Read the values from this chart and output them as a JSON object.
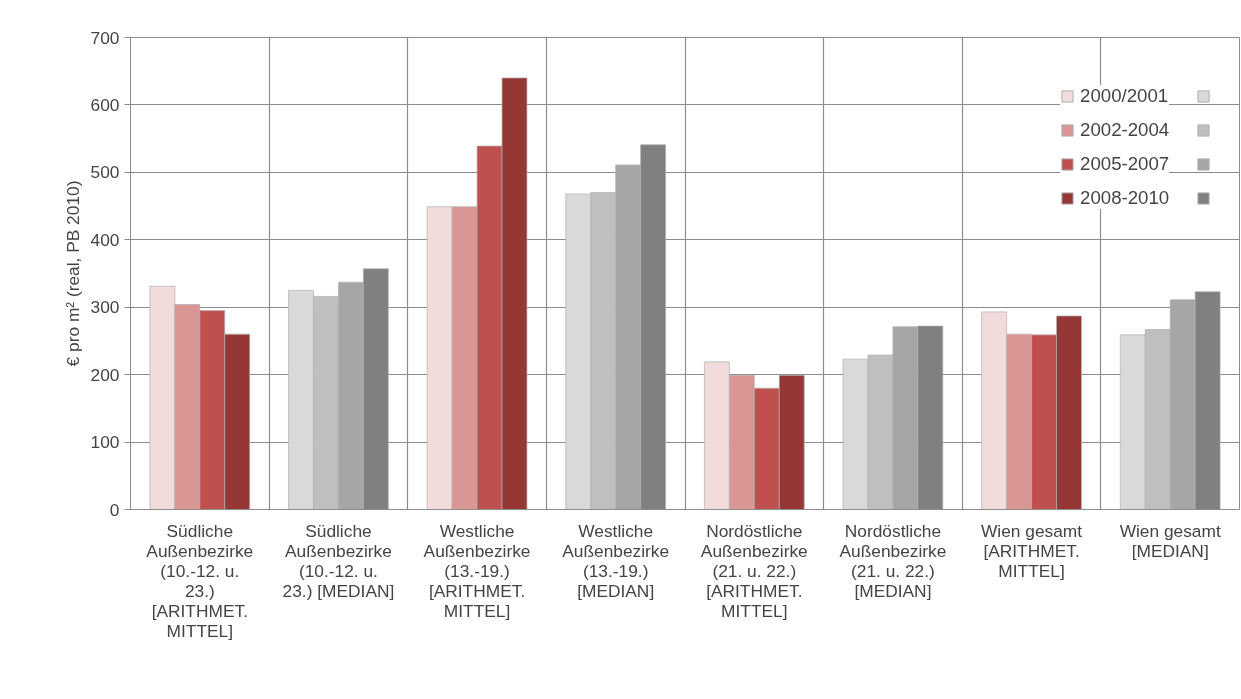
{
  "chart_data": {
    "type": "bar",
    "ylabel": "€ pro m² (real, PB 2010)",
    "categories": [
      "Südliche\nAußenbezirke\n(10.-12. u.\n23.)\n[ARITHMET.\nMITTEL]",
      "Südliche\nAußenbezirke\n(10.-12. u.\n23.) [MEDIAN]",
      "Westliche\nAußenbezirke\n(13.-19.)\n[ARITHMET.\nMITTEL]",
      "Westliche\nAußenbezirke\n(13.-19.)\n[MEDIAN]",
      "Nordöstliche\nAußenbezirke\n(21. u. 22.)\n[ARITHMET.\nMITTEL]",
      "Nordöstliche\nAußenbezirke\n(21. u. 22.)\n[MEDIAN]",
      "Wien gesamt\n[ARITHMET.\nMITTEL]",
      "Wien gesamt\n[MEDIAN]"
    ],
    "series": [
      {
        "name": "2000/2001",
        "colors": [
          "#f2dcdb",
          "#d9d9d9",
          "#f2dcdb",
          "#d9d9d9",
          "#f2dcdb",
          "#d9d9d9",
          "#f2dcdb",
          "#d9d9d9"
        ],
        "values": [
          331,
          325,
          449,
          468,
          219,
          223,
          293,
          259
        ]
      },
      {
        "name": "2002-2004",
        "colors": [
          "#d99694",
          "#bfbfbf",
          "#d99694",
          "#bfbfbf",
          "#d99694",
          "#bfbfbf",
          "#d99694",
          "#bfbfbf"
        ],
        "values": [
          304,
          316,
          449,
          470,
          199,
          229,
          260,
          267
        ]
      },
      {
        "name": "2005-2007",
        "colors": [
          "#c0504d",
          "#a6a6a6",
          "#c0504d",
          "#a6a6a6",
          "#c0504d",
          "#a6a6a6",
          "#c0504d",
          "#a6a6a6"
        ],
        "values": [
          295,
          337,
          539,
          511,
          180,
          271,
          259,
          311
        ]
      },
      {
        "name": "2008-2010",
        "colors": [
          "#953735",
          "#808080",
          "#953735",
          "#808080",
          "#953735",
          "#808080",
          "#953735",
          "#808080"
        ],
        "values": [
          260,
          357,
          640,
          541,
          199,
          272,
          287,
          323
        ]
      }
    ],
    "ylim": [
      0,
      700
    ],
    "yticks": [
      0,
      100,
      200,
      300,
      400,
      500,
      600,
      700
    ],
    "grid": true,
    "legend": "top right"
  }
}
